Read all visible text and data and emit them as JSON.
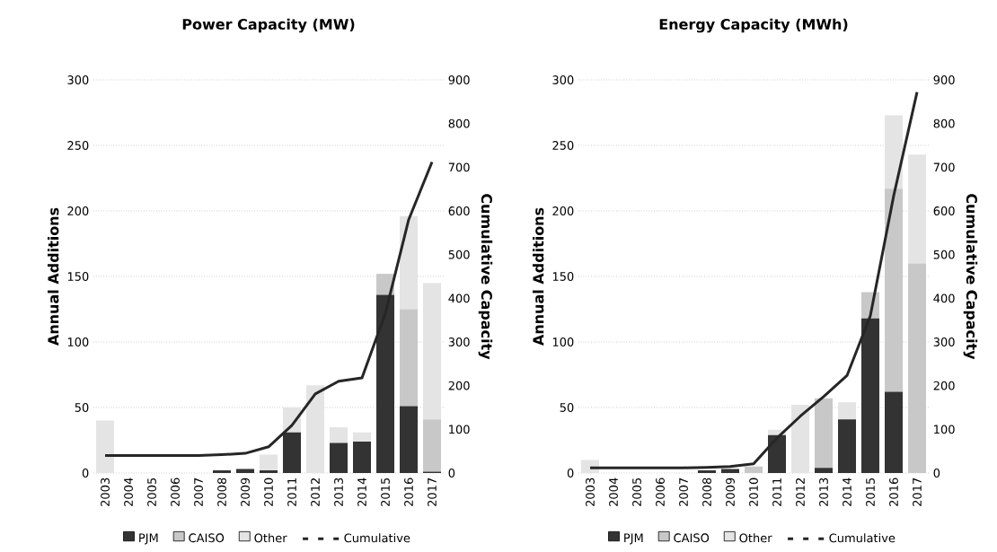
{
  "chart_data": [
    {
      "type": "bar",
      "title": "Power Capacity (MW)",
      "ylabel": "Annual Additions",
      "y2label": "Cumulative Capacity",
      "categories": [
        "2003",
        "2004",
        "2005",
        "2006",
        "2007",
        "2008",
        "2009",
        "2010",
        "2011",
        "2012",
        "2013",
        "2014",
        "2015",
        "2016",
        "2017"
      ],
      "stacked": true,
      "series": [
        {
          "name": "PJM",
          "color": "#333333",
          "values": [
            0,
            0,
            0,
            0,
            0,
            2,
            3,
            2,
            31,
            0,
            23,
            24,
            136,
            51,
            1
          ]
        },
        {
          "name": "CAISO",
          "color": "#c8c8c8",
          "values": [
            0,
            0,
            0,
            0,
            0,
            0,
            0,
            0,
            0,
            0,
            0,
            0,
            16,
            74,
            40
          ]
        },
        {
          "name": "Other",
          "color": "#e4e4e4",
          "values": [
            40,
            0,
            0,
            0,
            0,
            0,
            0,
            12,
            19,
            67,
            12,
            7,
            0,
            71,
            104
          ]
        },
        {
          "name": "Cumulative",
          "type": "line",
          "axis": "y2",
          "color": "#262626",
          "values": [
            40,
            40,
            40,
            40,
            40,
            42,
            45,
            60,
            109,
            181,
            210,
            218,
            365,
            580,
            712
          ]
        }
      ],
      "ylim": [
        0,
        300
      ],
      "yticks": [
        0,
        50,
        100,
        150,
        200,
        250,
        300
      ],
      "y2lim": [
        0,
        900
      ],
      "y2ticks": [
        0,
        100,
        200,
        300,
        400,
        500,
        600,
        700,
        800,
        900
      ],
      "grid": "y",
      "legend": "bottom"
    },
    {
      "type": "bar",
      "title": "Energy Capacity (MWh)",
      "ylabel": "Annual Additions",
      "y2label": "Cumulative Capacity",
      "categories": [
        "2003",
        "2004",
        "2005",
        "2006",
        "2007",
        "2008",
        "2009",
        "2010",
        "2011",
        "2012",
        "2013",
        "2014",
        "2015",
        "2016",
        "2017"
      ],
      "stacked": true,
      "series": [
        {
          "name": "PJM",
          "color": "#333333",
          "values": [
            0,
            0,
            0,
            0,
            0,
            2,
            3,
            0,
            29,
            0,
            4,
            41,
            118,
            62,
            0
          ]
        },
        {
          "name": "CAISO",
          "color": "#c8c8c8",
          "values": [
            0,
            0,
            0,
            0,
            0,
            0,
            0,
            5,
            0,
            0,
            53,
            0,
            20,
            155,
            160
          ]
        },
        {
          "name": "Other",
          "color": "#e4e4e4",
          "values": [
            10,
            0,
            0,
            0,
            0,
            0,
            0,
            0,
            4,
            52,
            0,
            13,
            0,
            56,
            83
          ]
        },
        {
          "name": "Cumulative",
          "type": "line",
          "axis": "y2",
          "color": "#262626",
          "values": [
            12,
            12,
            12,
            12,
            12,
            13,
            15,
            21,
            80,
            130,
            175,
            223,
            360,
            635,
            872
          ]
        }
      ],
      "ylim": [
        0,
        300
      ],
      "yticks": [
        0,
        50,
        100,
        150,
        200,
        250,
        300
      ],
      "y2lim": [
        0,
        900
      ],
      "y2ticks": [
        0,
        100,
        200,
        300,
        400,
        500,
        600,
        700,
        800,
        900
      ],
      "grid": "y",
      "legend": "bottom"
    }
  ]
}
